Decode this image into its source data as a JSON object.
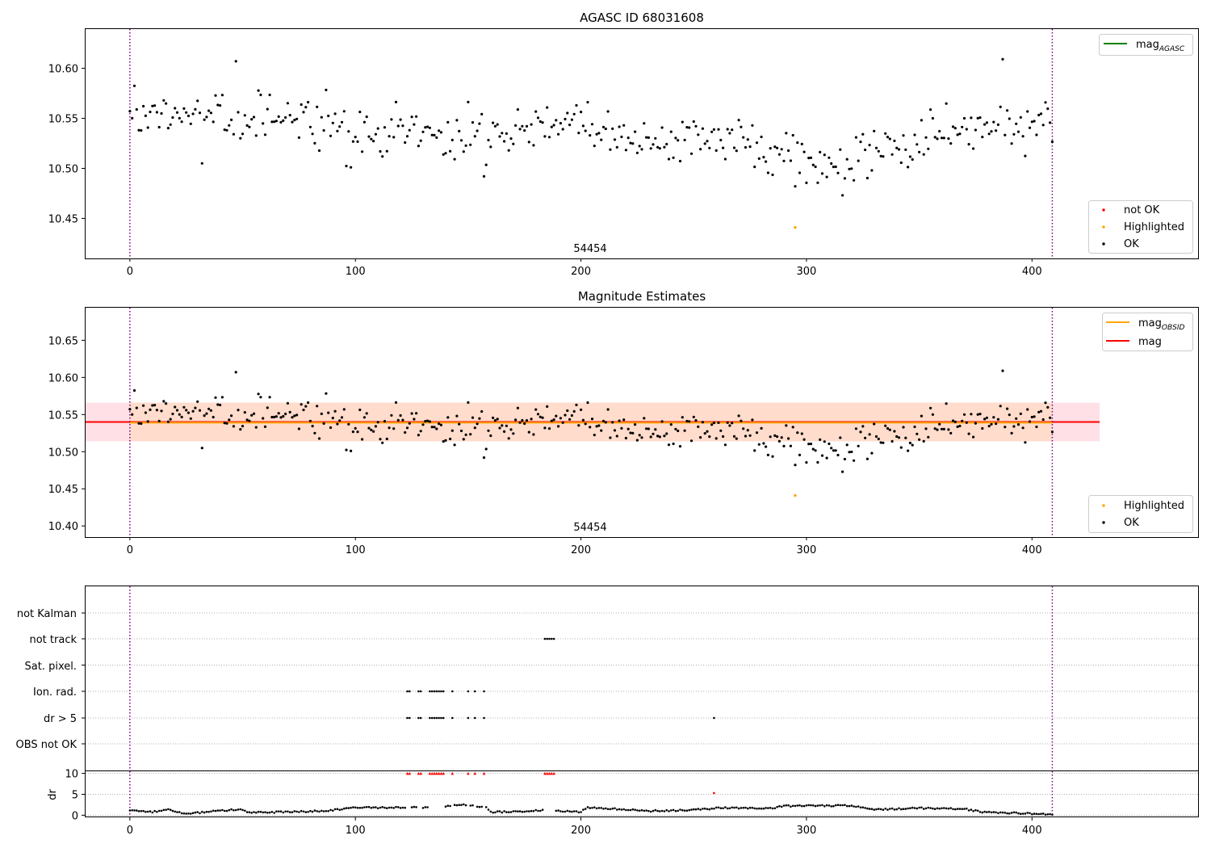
{
  "colors": {
    "ok": "#000000",
    "highlighted": "#ffa500",
    "not_ok": "#ff0000",
    "mag_agasc": "#008000",
    "mag_obsid": "#ffa500",
    "mag": "#ff0000",
    "band_obsid": "#ffdccc",
    "band_mag": "#ffe0e6",
    "obs_boundary": "#800080"
  },
  "chart_data": [
    {
      "type": "scatter",
      "title": "AGASC ID 68031608",
      "xlim": [
        -20,
        474
      ],
      "ylim": [
        10.41,
        10.64
      ],
      "xticks": [
        "0",
        "100",
        "200",
        "300",
        "400"
      ],
      "yticks": [
        "10.45",
        "10.50",
        "10.55",
        "10.60"
      ],
      "grid": false,
      "legend_upper": {
        "position": "upper-right",
        "entries": [
          "mag_{AGASC}"
        ]
      },
      "legend_lower": {
        "position": "lower-right",
        "entries": [
          "not OK",
          "Highlighted",
          "OK"
        ]
      },
      "obsid_label": "54454",
      "obs_boundaries": [
        0,
        409
      ],
      "series": [
        {
          "name": "OK",
          "n": 410,
          "x_range": [
            0,
            409
          ],
          "y_range": [
            10.47,
            10.61
          ],
          "trend_knots": [
            [
              0,
              10.555
            ],
            [
              40,
              10.556
            ],
            [
              80,
              10.55
            ],
            [
              100,
              10.535
            ],
            [
              130,
              10.538
            ],
            [
              160,
              10.536
            ],
            [
              200,
              10.545
            ],
            [
              230,
              10.526
            ],
            [
              270,
              10.525
            ],
            [
              300,
              10.508
            ],
            [
              320,
              10.505
            ],
            [
              340,
              10.525
            ],
            [
              370,
              10.545
            ],
            [
              409,
              10.55
            ]
          ]
        },
        {
          "name": "Highlighted",
          "points": [
            [
              295,
              10.441
            ]
          ]
        }
      ]
    },
    {
      "type": "scatter",
      "title": "Magnitude Estimates",
      "xlim": [
        -20,
        474
      ],
      "ylim": [
        10.385,
        10.695
      ],
      "xticks": [
        "0",
        "100",
        "200",
        "300",
        "400"
      ],
      "yticks": [
        "10.40",
        "10.45",
        "10.50",
        "10.55",
        "10.60",
        "10.65"
      ],
      "grid": false,
      "legend_upper": {
        "position": "upper-right",
        "entries": [
          "mag_{OBSID}",
          "mag"
        ]
      },
      "legend_lower": {
        "position": "lower-right",
        "entries": [
          "Highlighted",
          "OK"
        ]
      },
      "obsid_label": "54454",
      "obs_boundaries": [
        0,
        409
      ],
      "mag_obsid": {
        "value": 10.539,
        "lower": 10.514,
        "upper": 10.566,
        "x_range": [
          0,
          409
        ]
      },
      "mag": {
        "value": 10.54,
        "lower": 10.514,
        "upper": 10.566,
        "x_range": [
          -20,
          430
        ]
      },
      "series": [
        {
          "name": "OK",
          "same_as": "panel 1 OK"
        },
        {
          "name": "Highlighted",
          "points": [
            [
              295,
              10.441
            ]
          ]
        }
      ]
    },
    {
      "type": "scatter",
      "title": "",
      "xlim": [
        -20,
        474
      ],
      "categories": [
        "not Kalman",
        "not track",
        "Sat. pixel.",
        "Ion. rad.",
        "dr > 5",
        "OBS not OK"
      ],
      "grid": "horizontal dotted",
      "obs_boundaries": [
        0,
        409
      ],
      "flags": {
        "not track": [
          184,
          185,
          186,
          187,
          188
        ],
        "Ion. rad.": [
          123,
          124,
          128,
          129,
          133,
          134,
          135,
          136,
          137,
          138,
          139,
          143,
          150,
          153,
          157
        ],
        "dr > 5": [
          123,
          124,
          128,
          129,
          133,
          134,
          135,
          136,
          137,
          138,
          139,
          143,
          150,
          153,
          157,
          259
        ]
      }
    },
    {
      "type": "scatter",
      "title": "",
      "ylabel": "dr",
      "xlim": [
        -20,
        474
      ],
      "ylim": [
        -0.5,
        10.5
      ],
      "xticks": [
        "0",
        "100",
        "200",
        "300",
        "400"
      ],
      "yticks": [
        "0",
        "5",
        "10"
      ],
      "grid": "horizontal dotted",
      "obs_boundaries": [
        0,
        409
      ],
      "dr_clipped_at": 10,
      "dr_clipped_x": [
        123,
        124,
        128,
        129,
        133,
        134,
        135,
        136,
        137,
        138,
        139,
        143,
        150,
        153,
        157,
        184,
        185,
        186,
        187,
        188
      ],
      "dr_red_points": [
        [
          259,
          5.3
        ]
      ],
      "dr_segments": [
        [
          0,
          1.3
        ],
        [
          10,
          0.8
        ],
        [
          17,
          1.4
        ],
        [
          25,
          0.3
        ],
        [
          40,
          1.1
        ],
        [
          50,
          1.4
        ],
        [
          52,
          0.6
        ],
        [
          70,
          0.8
        ],
        [
          85,
          1.0
        ],
        [
          100,
          1.8
        ],
        [
          125,
          1.8
        ],
        [
          130,
          1.9
        ],
        [
          150,
          2.5
        ],
        [
          158,
          1.9
        ],
        [
          160,
          0.7
        ],
        [
          185,
          1.2
        ],
        [
          200,
          0.8
        ],
        [
          203,
          1.9
        ],
        [
          230,
          1.0
        ],
        [
          250,
          1.3
        ],
        [
          258,
          1.6
        ],
        [
          262,
          1.8
        ],
        [
          285,
          1.7
        ],
        [
          290,
          2.2
        ],
        [
          320,
          2.3
        ],
        [
          330,
          1.3
        ],
        [
          350,
          1.7
        ],
        [
          370,
          1.5
        ],
        [
          378,
          0.8
        ],
        [
          400,
          0.4
        ],
        [
          409,
          0.2
        ]
      ]
    }
  ]
}
